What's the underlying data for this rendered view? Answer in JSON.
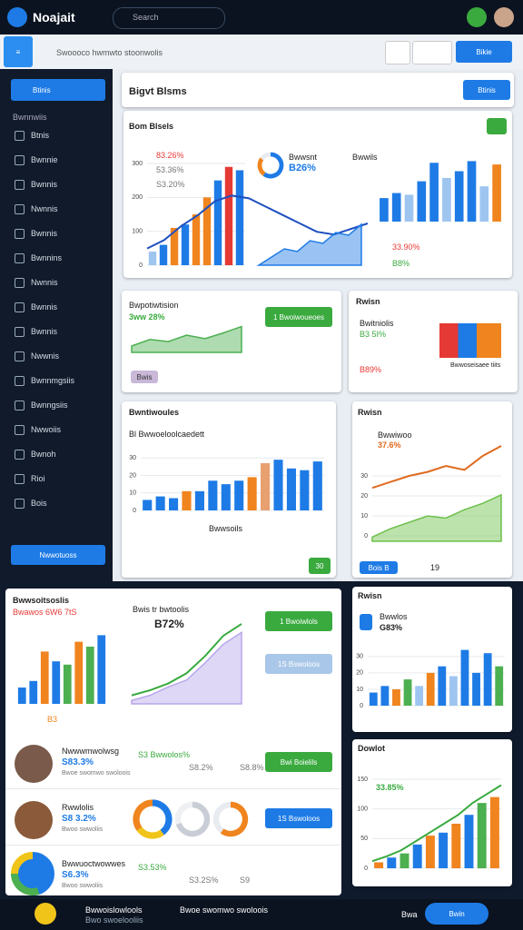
{
  "header": {
    "logo": "Noajait",
    "search": "Search"
  },
  "toolbar": {
    "text": "Swoooco hwmwto stoonwolis",
    "button": "Bikie"
  },
  "sidebar": {
    "button": "Btinis",
    "section": "Bwnnwiis",
    "items": [
      "Btnis",
      "Bwnnie",
      "Bwnnis",
      "Nwnnis",
      "Bwnnis",
      "Bwnnins",
      "Nwnnis",
      "Bwnnis",
      "Bwnnis",
      "Nwwnis",
      "Bwnnmgsiis",
      "Bwnngsiis",
      "Nwwoiis",
      "Bwnoh",
      "Rioi",
      "Bois"
    ],
    "footer_button": "Nwwotuoss"
  },
  "page_header": {
    "title": "Bigvt Blsms",
    "button": "Btinis"
  },
  "texts": {
    "main_title": "Bom Blsels",
    "legend1": "83.26%",
    "legend2": "53.36%",
    "legend3": "S3.20%",
    "kpi_label": "Bwwsnt",
    "kpi_value": "B26%",
    "right_label": "Bwwils",
    "stat1": "33.90%",
    "stat2": "B8%",
    "card2_title": "Bwpotiwtision",
    "card2_kpi": "3ww 28%",
    "card2_button": "1 Bwoiwoueoes",
    "card2_small": "Bwis",
    "card3_title": "Rwisn",
    "card3_label": "Bwitniolis",
    "card3_v1": "B3 5I%",
    "card3_v2": "B89%",
    "card3_note": "Bwwoseisaee tiits",
    "card4_title": "Bwntiwoules",
    "card4_sub": "Bl Bwwoeloolcaedett",
    "card4_legend": "Bwwsoils",
    "card4_button": "30",
    "card5_title": "Rwisn",
    "card5_label": "Bwwiwoo",
    "card5_value": "37.6%",
    "card5_button": "Bois B",
    "card5_note": "19",
    "card6_title": "Bwwsoitsoslis",
    "card6_sub": "Bwawos 6W6 7tS",
    "card6_kpi_label": "Bwis tr bwtoolis",
    "card6_kpi": "B72%",
    "card6_btn1": "1 Bwoiwlols",
    "card6_btn2": "1S Bswoloos",
    "card6_foot": "B3",
    "card7_title": "Rwisn",
    "card7_label": "Bwwlos",
    "card7_value": "G83%",
    "card8_title": "Dowlot",
    "card8_value": "33.85%"
  },
  "people": [
    {
      "name": "Nwwwmwolwsg",
      "value": "S83.3%",
      "sub": "Bwoe swomwo swoloois",
      "stat1": "S3 Bwwolos%",
      "stat2": "S8.2%",
      "stat3": "S8.8%",
      "button": "Bwi Boielils"
    },
    {
      "name": "Rwwlolis",
      "value": "S8 3.2%",
      "sub": "Bwoo swwoliis",
      "button": "1S Bswoloos"
    },
    {
      "name": "Bwwuoctwowwes",
      "value": "S6.3%",
      "sub": "Bwoo swwoliis",
      "stat1": "S3.53%",
      "stat2": "S3.2S%",
      "stat3": "S9"
    }
  ],
  "footer": {
    "text": "Bwwoislowlools",
    "sub": "Bwo swoelooliis",
    "center": "Bwoe swomwo swoloois",
    "right": "Bwa",
    "button": "Bwin"
  },
  "charts": [
    {
      "type": "bar",
      "values": [
        40,
        60,
        110,
        120,
        150,
        200,
        250,
        290,
        280
      ],
      "colors": [
        "#9ec5f0",
        "#1e7be6",
        "#f0841e",
        "#1e7be6",
        "#f0841e",
        "#f0841e",
        "#1e7be6",
        "#e53935",
        "#1e7be6"
      ],
      "ylim": [
        0,
        300
      ],
      "yticks": [
        0,
        100,
        200,
        300
      ]
    },
    {
      "type": "line",
      "values": [
        60,
        90,
        140,
        180,
        230,
        250,
        240,
        210,
        180,
        150,
        120,
        110,
        130,
        150
      ],
      "color": "#1e4fbf",
      "ylim": [
        0,
        300
      ]
    },
    {
      "type": "area",
      "values": [
        0,
        15,
        30,
        25,
        45,
        40,
        60,
        55,
        75
      ],
      "color": "#1e7be6",
      "ylim": [
        0,
        100
      ]
    },
    {
      "type": "bar",
      "values": [
        70,
        85,
        80,
        120,
        175,
        130,
        150,
        180,
        105,
        170
      ],
      "colors": [
        "#1e7be6",
        "#1e7be6",
        "#9ec5f0",
        "#1e7be6",
        "#1e7be6",
        "#9ec5f0",
        "#1e7be6",
        "#1e7be6",
        "#9ec5f0",
        "#f0841e"
      ],
      "ylim": [
        0,
        200
      ]
    },
    {
      "type": "area",
      "values": [
        15,
        30,
        25,
        40,
        32,
        45,
        60
      ],
      "color": "#4caf50",
      "ylim": [
        0,
        80
      ]
    },
    {
      "type": "bar",
      "values": [
        6,
        8,
        7,
        11,
        11,
        17,
        15,
        17,
        19,
        27,
        29,
        24,
        23,
        28
      ],
      "colors": [
        "#1e7be6",
        "#1e7be6",
        "#1e7be6",
        "#f0841e",
        "#1e7be6",
        "#1e7be6",
        "#1e7be6",
        "#1e7be6",
        "#f0841e",
        "#e8a070",
        "#1e7be6",
        "#1e7be6",
        "#1e7be6",
        "#1e7be6"
      ],
      "ylim": [
        0,
        40
      ],
      "yticks": [
        0,
        10,
        20,
        30
      ]
    },
    {
      "type": "line",
      "values": [
        24,
        27,
        30,
        32,
        35,
        33,
        40,
        45
      ],
      "color": "#e06a1e",
      "ylim": [
        0,
        50
      ],
      "yticks": [
        0,
        10,
        20,
        30
      ]
    },
    {
      "type": "area",
      "values": [
        2,
        6,
        9,
        12,
        11,
        15,
        18,
        22
      ],
      "color": "#6cc04a",
      "ylim": [
        0,
        50
      ]
    },
    {
      "type": "bar",
      "values": [
        10,
        14,
        32,
        26,
        24,
        38,
        35,
        42
      ],
      "colors": [
        "#1e7be6",
        "#1e7be6",
        "#f0841e",
        "#1e7be6",
        "#4caf50",
        "#f0841e",
        "#4caf50",
        "#1e7be6"
      ],
      "ylim": [
        0,
        50
      ]
    },
    {
      "type": "line",
      "values": [
        5,
        8,
        12,
        18,
        28,
        40,
        47
      ],
      "color": "#3aaa3f",
      "ylim": [
        0,
        55
      ]
    },
    {
      "type": "area",
      "values": [
        2,
        5,
        10,
        14,
        24,
        35,
        42
      ],
      "color": "#b9a6ea",
      "ylim": [
        0,
        55
      ]
    },
    {
      "type": "bar",
      "values": [
        8,
        12,
        10,
        16,
        12,
        20,
        24,
        18,
        34,
        20,
        32,
        24
      ],
      "colors": [
        "#1e7be6",
        "#1e7be6",
        "#f0841e",
        "#4caf50",
        "#9ec5f0",
        "#f0841e",
        "#1e7be6",
        "#9ec5f0",
        "#1e7be6",
        "#1e7be6",
        "#1e7be6",
        "#4caf50"
      ],
      "ylim": [
        0,
        36
      ],
      "yticks": [
        0,
        10,
        20,
        30
      ]
    },
    {
      "type": "bar",
      "values": [
        10,
        18,
        25,
        40,
        55,
        60,
        75,
        90,
        110,
        120
      ],
      "colors": [
        "#f0841e",
        "#1e7be6",
        "#4caf50",
        "#1e7be6",
        "#f0841e",
        "#1e7be6",
        "#f0841e",
        "#1e7be6",
        "#4caf50",
        "#f0841e"
      ],
      "ylim": [
        0,
        150
      ],
      "yticks": [
        0,
        50,
        100,
        150
      ]
    },
    {
      "type": "line",
      "values": [
        12,
        20,
        30,
        45,
        60,
        75,
        90,
        110,
        125,
        140
      ],
      "color": "#3aaa3f",
      "ylim": [
        0,
        150
      ]
    },
    {
      "type": "pie",
      "values": [
        40,
        25,
        35
      ],
      "colors": [
        "#1e7be6",
        "#f0c419",
        "#f0841e"
      ]
    },
    {
      "type": "pie",
      "values": [
        70,
        30
      ],
      "colors": [
        "#c9cdd6",
        "#eef0f3"
      ]
    },
    {
      "type": "pie",
      "values": [
        60,
        40
      ],
      "colors": [
        "#f0841e",
        "#e8ebf0"
      ]
    },
    {
      "type": "pie",
      "values": [
        45,
        30,
        25
      ],
      "colors": [
        "#1e7be6",
        "#4caf50",
        "#f0c419"
      ]
    },
    {
      "type": "pie",
      "values": [
        60,
        25,
        15
      ],
      "colors": [
        "#1e7be6",
        "#f0841e",
        "#e8ebf0"
      ]
    }
  ]
}
